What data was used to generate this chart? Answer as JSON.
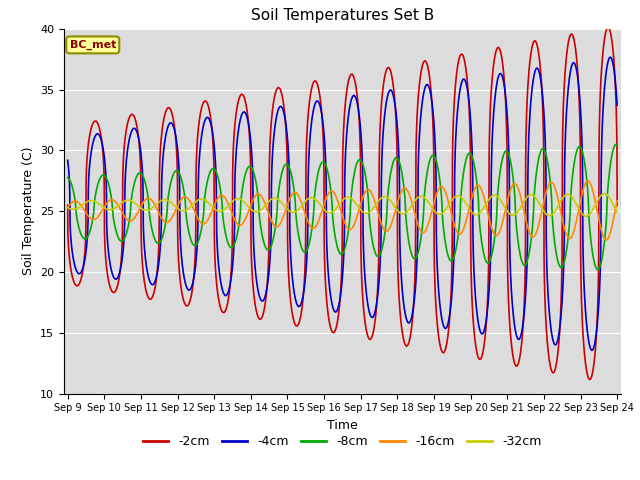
{
  "title": "Soil Temperatures Set B",
  "xlabel": "Time",
  "ylabel": "Soil Temperature (C)",
  "ylim": [
    10,
    40
  ],
  "x_tick_labels": [
    "Sep 9",
    "Sep 10",
    "Sep 11",
    "Sep 12",
    "Sep 13",
    "Sep 14",
    "Sep 15",
    "Sep 16",
    "Sep 17",
    "Sep 18",
    "Sep 19",
    "Sep 20",
    "Sep 21",
    "Sep 22",
    "Sep 23",
    "Sep 24"
  ],
  "annotation_text": "BC_met",
  "background_color": "#dcdcdc",
  "grid_color": "#ffffff",
  "series": [
    {
      "label": "-2cm",
      "color": "#cc0000",
      "mean": 25.5,
      "amp_base": 6.5,
      "amp_growth": 0.55,
      "phase": 0.0,
      "period": 1.0,
      "sharpness": 3.0
    },
    {
      "label": "-4cm",
      "color": "#0000cc",
      "mean": 25.5,
      "amp_base": 5.5,
      "amp_growth": 0.45,
      "phase": 0.06,
      "period": 1.0,
      "sharpness": 2.5
    },
    {
      "label": "-8cm",
      "color": "#00aa00",
      "mean": 25.3,
      "amp_base": 2.5,
      "amp_growth": 0.18,
      "phase": 0.22,
      "period": 1.0,
      "sharpness": 1.5
    },
    {
      "label": "-16cm",
      "color": "#ff8800",
      "mean": 25.1,
      "amp_base": 0.7,
      "amp_growth": 0.12,
      "phase": 0.45,
      "period": 1.0,
      "sharpness": 1.0
    },
    {
      "label": "-32cm",
      "color": "#cccc00",
      "mean": 25.5,
      "amp_base": 0.35,
      "amp_growth": 0.04,
      "phase": 0.9,
      "period": 1.0,
      "sharpness": 1.0
    }
  ]
}
